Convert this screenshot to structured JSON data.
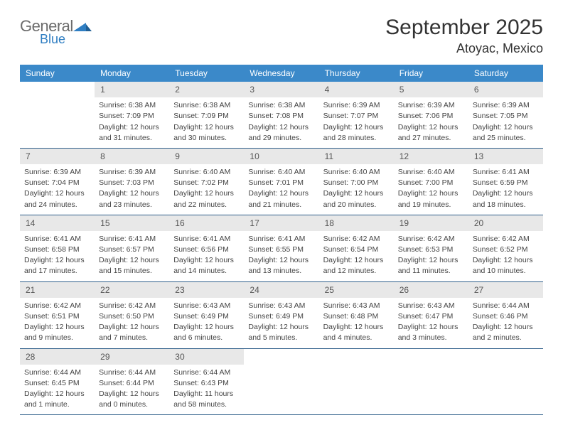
{
  "logo": {
    "word1": "General",
    "word2": "Blue",
    "mark_color": "#2f7ec2",
    "text_gray": "#6b6b6b"
  },
  "header": {
    "month": "September 2025",
    "location": "Atoyac, Mexico"
  },
  "colors": {
    "header_bar": "#3b89c9",
    "row_border": "#2f5f8a",
    "daynum_bg": "#e8e8e8",
    "text": "#333333"
  },
  "daysOfWeek": [
    "Sunday",
    "Monday",
    "Tuesday",
    "Wednesday",
    "Thursday",
    "Friday",
    "Saturday"
  ],
  "weeks": [
    [
      null,
      {
        "n": "1",
        "sunrise": "Sunrise: 6:38 AM",
        "sunset": "Sunset: 7:09 PM",
        "daylight1": "Daylight: 12 hours",
        "daylight2": "and 31 minutes."
      },
      {
        "n": "2",
        "sunrise": "Sunrise: 6:38 AM",
        "sunset": "Sunset: 7:09 PM",
        "daylight1": "Daylight: 12 hours",
        "daylight2": "and 30 minutes."
      },
      {
        "n": "3",
        "sunrise": "Sunrise: 6:38 AM",
        "sunset": "Sunset: 7:08 PM",
        "daylight1": "Daylight: 12 hours",
        "daylight2": "and 29 minutes."
      },
      {
        "n": "4",
        "sunrise": "Sunrise: 6:39 AM",
        "sunset": "Sunset: 7:07 PM",
        "daylight1": "Daylight: 12 hours",
        "daylight2": "and 28 minutes."
      },
      {
        "n": "5",
        "sunrise": "Sunrise: 6:39 AM",
        "sunset": "Sunset: 7:06 PM",
        "daylight1": "Daylight: 12 hours",
        "daylight2": "and 27 minutes."
      },
      {
        "n": "6",
        "sunrise": "Sunrise: 6:39 AM",
        "sunset": "Sunset: 7:05 PM",
        "daylight1": "Daylight: 12 hours",
        "daylight2": "and 25 minutes."
      }
    ],
    [
      {
        "n": "7",
        "sunrise": "Sunrise: 6:39 AM",
        "sunset": "Sunset: 7:04 PM",
        "daylight1": "Daylight: 12 hours",
        "daylight2": "and 24 minutes."
      },
      {
        "n": "8",
        "sunrise": "Sunrise: 6:39 AM",
        "sunset": "Sunset: 7:03 PM",
        "daylight1": "Daylight: 12 hours",
        "daylight2": "and 23 minutes."
      },
      {
        "n": "9",
        "sunrise": "Sunrise: 6:40 AM",
        "sunset": "Sunset: 7:02 PM",
        "daylight1": "Daylight: 12 hours",
        "daylight2": "and 22 minutes."
      },
      {
        "n": "10",
        "sunrise": "Sunrise: 6:40 AM",
        "sunset": "Sunset: 7:01 PM",
        "daylight1": "Daylight: 12 hours",
        "daylight2": "and 21 minutes."
      },
      {
        "n": "11",
        "sunrise": "Sunrise: 6:40 AM",
        "sunset": "Sunset: 7:00 PM",
        "daylight1": "Daylight: 12 hours",
        "daylight2": "and 20 minutes."
      },
      {
        "n": "12",
        "sunrise": "Sunrise: 6:40 AM",
        "sunset": "Sunset: 7:00 PM",
        "daylight1": "Daylight: 12 hours",
        "daylight2": "and 19 minutes."
      },
      {
        "n": "13",
        "sunrise": "Sunrise: 6:41 AM",
        "sunset": "Sunset: 6:59 PM",
        "daylight1": "Daylight: 12 hours",
        "daylight2": "and 18 minutes."
      }
    ],
    [
      {
        "n": "14",
        "sunrise": "Sunrise: 6:41 AM",
        "sunset": "Sunset: 6:58 PM",
        "daylight1": "Daylight: 12 hours",
        "daylight2": "and 17 minutes."
      },
      {
        "n": "15",
        "sunrise": "Sunrise: 6:41 AM",
        "sunset": "Sunset: 6:57 PM",
        "daylight1": "Daylight: 12 hours",
        "daylight2": "and 15 minutes."
      },
      {
        "n": "16",
        "sunrise": "Sunrise: 6:41 AM",
        "sunset": "Sunset: 6:56 PM",
        "daylight1": "Daylight: 12 hours",
        "daylight2": "and 14 minutes."
      },
      {
        "n": "17",
        "sunrise": "Sunrise: 6:41 AM",
        "sunset": "Sunset: 6:55 PM",
        "daylight1": "Daylight: 12 hours",
        "daylight2": "and 13 minutes."
      },
      {
        "n": "18",
        "sunrise": "Sunrise: 6:42 AM",
        "sunset": "Sunset: 6:54 PM",
        "daylight1": "Daylight: 12 hours",
        "daylight2": "and 12 minutes."
      },
      {
        "n": "19",
        "sunrise": "Sunrise: 6:42 AM",
        "sunset": "Sunset: 6:53 PM",
        "daylight1": "Daylight: 12 hours",
        "daylight2": "and 11 minutes."
      },
      {
        "n": "20",
        "sunrise": "Sunrise: 6:42 AM",
        "sunset": "Sunset: 6:52 PM",
        "daylight1": "Daylight: 12 hours",
        "daylight2": "and 10 minutes."
      }
    ],
    [
      {
        "n": "21",
        "sunrise": "Sunrise: 6:42 AM",
        "sunset": "Sunset: 6:51 PM",
        "daylight1": "Daylight: 12 hours",
        "daylight2": "and 9 minutes."
      },
      {
        "n": "22",
        "sunrise": "Sunrise: 6:42 AM",
        "sunset": "Sunset: 6:50 PM",
        "daylight1": "Daylight: 12 hours",
        "daylight2": "and 7 minutes."
      },
      {
        "n": "23",
        "sunrise": "Sunrise: 6:43 AM",
        "sunset": "Sunset: 6:49 PM",
        "daylight1": "Daylight: 12 hours",
        "daylight2": "and 6 minutes."
      },
      {
        "n": "24",
        "sunrise": "Sunrise: 6:43 AM",
        "sunset": "Sunset: 6:49 PM",
        "daylight1": "Daylight: 12 hours",
        "daylight2": "and 5 minutes."
      },
      {
        "n": "25",
        "sunrise": "Sunrise: 6:43 AM",
        "sunset": "Sunset: 6:48 PM",
        "daylight1": "Daylight: 12 hours",
        "daylight2": "and 4 minutes."
      },
      {
        "n": "26",
        "sunrise": "Sunrise: 6:43 AM",
        "sunset": "Sunset: 6:47 PM",
        "daylight1": "Daylight: 12 hours",
        "daylight2": "and 3 minutes."
      },
      {
        "n": "27",
        "sunrise": "Sunrise: 6:44 AM",
        "sunset": "Sunset: 6:46 PM",
        "daylight1": "Daylight: 12 hours",
        "daylight2": "and 2 minutes."
      }
    ],
    [
      {
        "n": "28",
        "sunrise": "Sunrise: 6:44 AM",
        "sunset": "Sunset: 6:45 PM",
        "daylight1": "Daylight: 12 hours",
        "daylight2": "and 1 minute."
      },
      {
        "n": "29",
        "sunrise": "Sunrise: 6:44 AM",
        "sunset": "Sunset: 6:44 PM",
        "daylight1": "Daylight: 12 hours",
        "daylight2": "and 0 minutes."
      },
      {
        "n": "30",
        "sunrise": "Sunrise: 6:44 AM",
        "sunset": "Sunset: 6:43 PM",
        "daylight1": "Daylight: 11 hours",
        "daylight2": "and 58 minutes."
      },
      null,
      null,
      null,
      null
    ]
  ]
}
